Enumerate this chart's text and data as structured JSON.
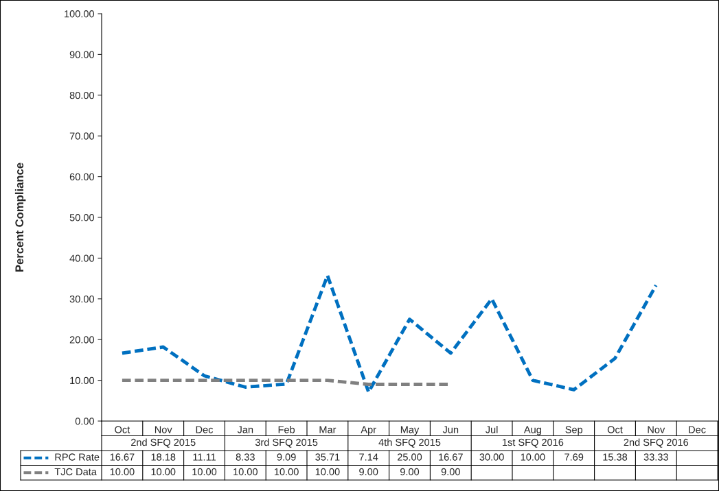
{
  "chart_data": {
    "type": "line",
    "ylabel": "Percent Compliance",
    "categories": [
      "Oct",
      "Nov",
      "Dec",
      "Jan",
      "Feb",
      "Mar",
      "Apr",
      "May",
      "Jun",
      "Jul",
      "Aug",
      "Sep",
      "Oct",
      "Nov",
      "Dec"
    ],
    "series": [
      {
        "name": "RPC Rate",
        "color": "#0070c0",
        "values": [
          16.67,
          18.18,
          11.11,
          8.33,
          9.09,
          35.71,
          7.14,
          25.0,
          16.67,
          30.0,
          10.0,
          7.69,
          15.38,
          33.33,
          null
        ],
        "value_labels": [
          "16.67",
          "18.18",
          "11.11",
          "8.33",
          "9.09",
          "35.71",
          "7.14",
          "25.00",
          "16.67",
          "30.00",
          "10.00",
          "7.69",
          "15.38",
          "33.33",
          null
        ]
      },
      {
        "name": "TJC Data",
        "color": "#808080",
        "values": [
          10.0,
          10.0,
          10.0,
          10.0,
          10.0,
          10.0,
          9.0,
          9.0,
          9.0,
          null,
          null,
          null,
          null,
          null,
          null
        ],
        "value_labels": [
          "10.00",
          "10.00",
          "10.00",
          "10.00",
          "10.00",
          "10.00",
          "9.00",
          "9.00",
          "9.00",
          null,
          null,
          null,
          null,
          null,
          null
        ]
      }
    ],
    "annotations": [
      "2nd SFQ 2015",
      "3rd SFQ 2015",
      "4th SFQ 2015",
      "1st SFQ 2016",
      "2nd SFQ 2016"
    ],
    "ylim": [
      0,
      100
    ],
    "yticks": [
      {
        "value": 0,
        "label": "0.00"
      },
      {
        "value": 10,
        "label": "10.00"
      },
      {
        "value": 20,
        "label": "20.00"
      },
      {
        "value": 30,
        "label": "30.00"
      },
      {
        "value": 40,
        "label": "40.00"
      },
      {
        "value": 50,
        "label": "50.00"
      },
      {
        "value": 60,
        "label": "60.00"
      },
      {
        "value": 70,
        "label": "70.00"
      },
      {
        "value": 80,
        "label": "80.00"
      },
      {
        "value": 90,
        "label": "90.00"
      },
      {
        "value": 100,
        "label": "100.00"
      }
    ],
    "grid": false,
    "legend": "bottom",
    "line_style": "dashed",
    "marker": "none"
  }
}
